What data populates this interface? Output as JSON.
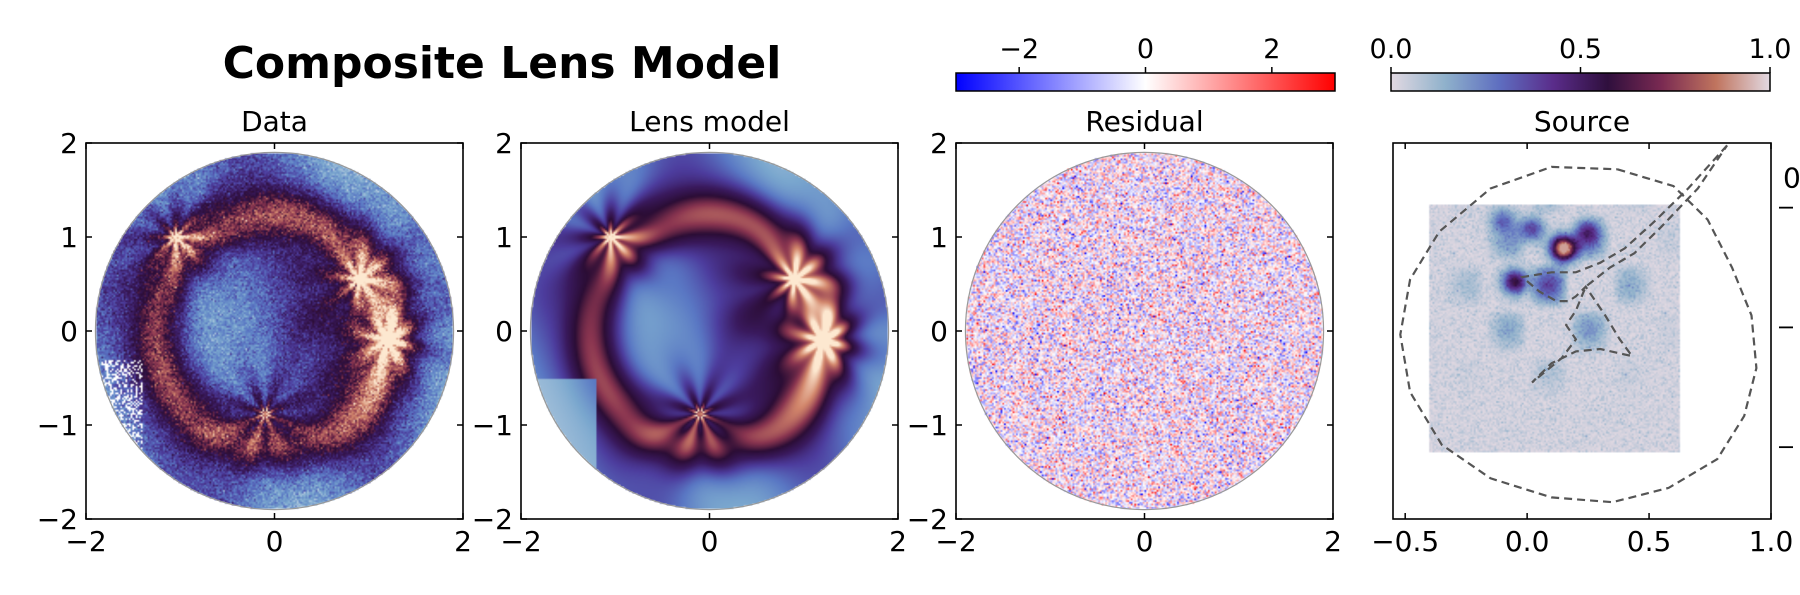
{
  "figure": {
    "suptitle": "Composite Lens Model"
  },
  "colors": {
    "lens_cmap": [
      "#fff8f4",
      "#f0e6dc",
      "#b8cde0",
      "#7aa7ce",
      "#5a78c4",
      "#4d3d9e",
      "#3a1a5e",
      "#2b0d35",
      "#8a3550",
      "#d2866b",
      "#fde8d0"
    ],
    "residual_cmap": [
      "#0000ff",
      "#ffffff",
      "#ff0000"
    ],
    "source_cmap": [
      "#e2d9e2",
      "#8fb1cb",
      "#5e6ec0",
      "#5a2c8a",
      "#2f0f3d",
      "#7a2a52",
      "#c0745e",
      "#e2d9e2"
    ],
    "caustic_line": "#555555"
  },
  "colorbars": {
    "residual": {
      "ticks": [
        "−2",
        "0",
        "2"
      ],
      "range": [
        -3,
        3
      ]
    },
    "source": {
      "ticks": [
        "0.0",
        "0.5",
        "1.0"
      ],
      "range": [
        0,
        1
      ]
    }
  },
  "chart_data": [
    {
      "type": "heatmap",
      "title": "Data",
      "xlim": [
        -2,
        2
      ],
      "ylim": [
        -2,
        2
      ],
      "xticks": [
        "−2",
        "0",
        "2"
      ],
      "yticks": [
        "−2",
        "−1",
        "0",
        "1",
        "2"
      ],
      "aperture_radius": 1.9,
      "lensed_images": [
        {
          "x": -1.05,
          "y": 1.0
        },
        {
          "x": 0.9,
          "y": 0.55
        },
        {
          "x": 1.2,
          "y": -0.1
        },
        {
          "x": -0.1,
          "y": -0.88
        }
      ]
    },
    {
      "type": "heatmap",
      "title": "Lens model",
      "xlim": [
        -2,
        2
      ],
      "ylim": [
        -2,
        2
      ],
      "xticks": [
        "−2",
        "0",
        "2"
      ],
      "yticks": [
        "−2",
        "−1",
        "0",
        "1",
        "2"
      ],
      "aperture_radius": 1.9,
      "lensed_images": [
        {
          "x": -1.05,
          "y": 1.0
        },
        {
          "x": 0.9,
          "y": 0.55
        },
        {
          "x": 1.2,
          "y": -0.1
        },
        {
          "x": -0.1,
          "y": -0.88
        }
      ]
    },
    {
      "type": "heatmap",
      "title": "Residual",
      "xlim": [
        -2,
        2
      ],
      "ylim": [
        -2,
        2
      ],
      "xticks": [
        "−2",
        "0",
        "2"
      ],
      "yticks": [
        "−2",
        "−1",
        "0",
        "1",
        "2"
      ],
      "aperture_radius": 1.9,
      "colorbar_range": [
        -3,
        3
      ]
    },
    {
      "type": "heatmap",
      "title": "Source",
      "xlim": [
        -0.55,
        1.0
      ],
      "ylim": [
        -1.05,
        0.52
      ],
      "xticks": [
        "−0.5",
        "0.0",
        "0.5",
        "1.0"
      ],
      "yticks_right": [
        "0"
      ],
      "source_plane": {
        "x0": -0.4,
        "x1": 0.63,
        "y0": -0.77,
        "y1": 0.26
      },
      "source_peaks": [
        {
          "x": 0.15,
          "y": 0.08,
          "amp": 1.0
        },
        {
          "x": -0.05,
          "y": -0.06,
          "amp": 0.55
        },
        {
          "x": 0.02,
          "y": 0.16,
          "amp": 0.35
        },
        {
          "x": 0.25,
          "y": 0.15,
          "amp": 0.3
        },
        {
          "x": -0.1,
          "y": 0.2,
          "amp": 0.25
        }
      ],
      "critical_curve": [
        [
          0.37,
          0.41
        ],
        [
          0.6,
          0.34
        ],
        [
          0.74,
          0.2
        ],
        [
          0.84,
          0.0
        ],
        [
          0.92,
          -0.2
        ],
        [
          0.94,
          -0.42
        ],
        [
          0.89,
          -0.62
        ],
        [
          0.78,
          -0.8
        ],
        [
          0.58,
          -0.92
        ],
        [
          0.35,
          -0.98
        ],
        [
          0.1,
          -0.96
        ],
        [
          -0.15,
          -0.88
        ],
        [
          -0.35,
          -0.74
        ],
        [
          -0.48,
          -0.52
        ],
        [
          -0.52,
          -0.28
        ],
        [
          -0.48,
          -0.05
        ],
        [
          -0.36,
          0.15
        ],
        [
          -0.15,
          0.33
        ],
        [
          0.1,
          0.42
        ],
        [
          0.37,
          0.41
        ]
      ],
      "caustic": [
        [
          0.82,
          0.51
        ],
        [
          0.66,
          0.33
        ],
        [
          0.52,
          0.19
        ],
        [
          0.4,
          0.08
        ],
        [
          0.3,
          0.02
        ],
        [
          0.2,
          -0.02
        ],
        [
          0.1,
          -0.02
        ],
        [
          -0.02,
          -0.04
        ],
        [
          0.05,
          -0.1
        ],
        [
          0.12,
          -0.14
        ],
        [
          0.17,
          -0.14
        ],
        [
          0.2,
          -0.12
        ],
        [
          0.24,
          -0.08
        ],
        [
          0.32,
          -0.2
        ],
        [
          0.38,
          -0.3
        ],
        [
          0.43,
          -0.37
        ],
        [
          0.3,
          -0.34
        ],
        [
          0.2,
          -0.35
        ],
        [
          0.1,
          -0.4
        ],
        [
          0.02,
          -0.48
        ],
        [
          0.14,
          -0.38
        ],
        [
          0.2,
          -0.3
        ],
        [
          0.16,
          -0.24
        ],
        [
          0.2,
          -0.18
        ],
        [
          0.24,
          -0.08
        ],
        [
          0.34,
          0.0
        ],
        [
          0.44,
          0.06
        ],
        [
          0.55,
          0.17
        ],
        [
          0.7,
          0.33
        ],
        [
          0.82,
          0.51
        ]
      ]
    }
  ]
}
